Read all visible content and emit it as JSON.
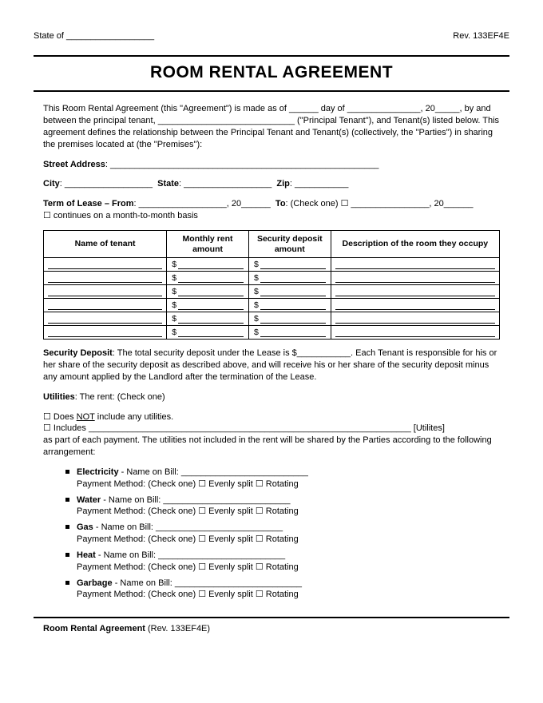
{
  "header": {
    "state_label": "State of __________________",
    "rev_label": "Rev. 133EF4E"
  },
  "title": "ROOM RENTAL AGREEMENT",
  "intro": "This Room Rental Agreement (this \"Agreement\") is made as of ______ day of _______________, 20_____, by and between the principal tenant, ____________________________ (\"Principal Tenant\"), and Tenant(s) listed below. This agreement defines the relationship between the Principal Tenant and Tenant(s) (collectively, the \"Parties\") in sharing the premises located at (the \"Premises\"):",
  "address": {
    "street_label": "Street Address",
    "street_line": ": _______________________________________________________",
    "city_label": "City",
    "city_line": ": __________________",
    "state_label": "State",
    "state_line": ": __________________",
    "zip_label": "Zip",
    "zip_line": ": ___________"
  },
  "term": {
    "label": "Term of Lease – From",
    "from_line": ": __________________, 20______",
    "to_label": "To",
    "to_line": ": (Check one) ☐ ________________, 20______",
    "continues": "☐ continues on a month-to-month basis"
  },
  "table": {
    "headers": [
      "Name of tenant",
      "Monthly rent amount",
      "Security deposit amount",
      "Description of the room they occupy"
    ],
    "row_count": 6,
    "col_widths": [
      "27%",
      "18%",
      "18%",
      "37%"
    ]
  },
  "security": {
    "label": "Security Deposit",
    "text": ": The total security deposit under the Lease is $___________. Each Tenant is responsible for his or her share of the security deposit as described above, and will receive his or her share of the security deposit minus any amount applied by the Landlord after the termination of the Lease."
  },
  "utilities": {
    "label": "Utilities",
    "intro": ": The rent: (Check one)",
    "opt1_pre": "☐ Does ",
    "opt1_not": "NOT",
    "opt1_post": " include any utilities.",
    "opt2": "☐ Includes __________________________________________________________________ [Utilites]",
    "tail": "as part of each payment. The utilities not included in the rent will be shared by the Parties according to the following arrangement:",
    "items": [
      {
        "name": "Electricity",
        "bill": " - Name on Bill: __________________________"
      },
      {
        "name": "Water",
        "bill": " - Name on Bill: __________________________"
      },
      {
        "name": "Gas",
        "bill": " - Name on Bill: __________________________"
      },
      {
        "name": "Heat",
        "bill": " - Name on Bill: __________________________"
      },
      {
        "name": "Garbage",
        "bill": " - Name on Bill: __________________________"
      }
    ],
    "payment_line": "Payment Method: (Check one) ☐ Evenly split ☐ Rotating"
  },
  "footer": {
    "title": "Room Rental Agreement",
    "rev": " (Rev. 133EF4E)"
  },
  "style": {
    "background": "#ffffff",
    "text_color": "#000000",
    "border_color": "#000000",
    "title_fontsize": 21,
    "body_fontsize": 11,
    "table_fontsize": 10.5
  }
}
